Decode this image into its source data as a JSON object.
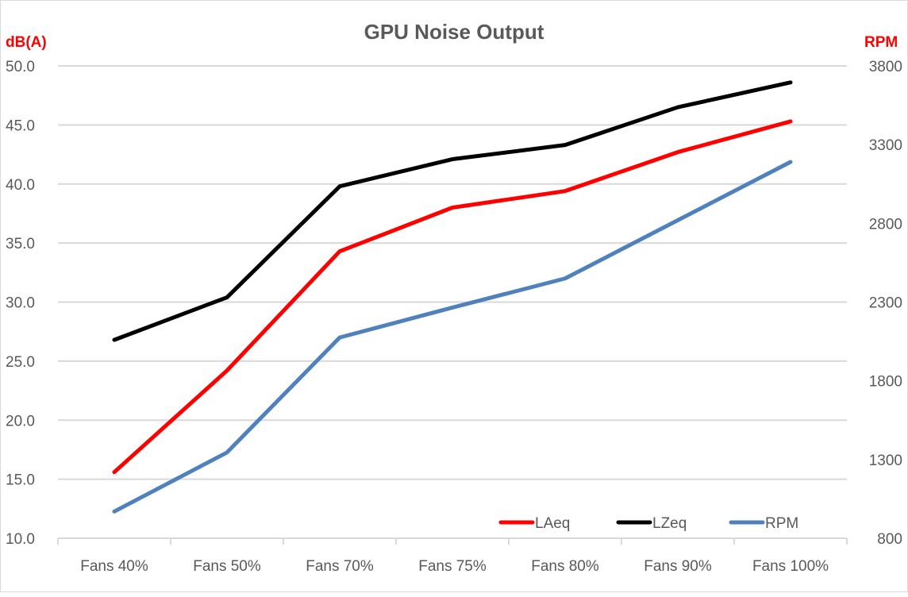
{
  "chart_data": {
    "type": "line",
    "title": "GPU Noise Output",
    "ylabel": "dB(A)",
    "y2label": "RPM",
    "categories": [
      "Fans 40%",
      "Fans 50%",
      "Fans 70%",
      "Fans 75%",
      "Fans 80%",
      "Fans 90%",
      "Fans 100%"
    ],
    "ylim": [
      10,
      50
    ],
    "y_ticks": [
      "10.0",
      "15.0",
      "20.0",
      "25.0",
      "30.0",
      "35.0",
      "40.0",
      "45.0",
      "50.0"
    ],
    "y2lim": [
      800,
      3800
    ],
    "y2_ticks": [
      "800",
      "1300",
      "1800",
      "2300",
      "2800",
      "3300",
      "3800"
    ],
    "grid": true,
    "legend_position": "bottom-right inside",
    "axis_label_color": "#ff0000",
    "series": [
      {
        "name": "LAeq",
        "axis": "left",
        "color": "#ff0000",
        "values": [
          15.6,
          24.2,
          34.3,
          38.0,
          39.4,
          42.7,
          45.3
        ]
      },
      {
        "name": "LZeq",
        "axis": "left",
        "color": "#000000",
        "values": [
          26.8,
          30.4,
          39.8,
          42.1,
          43.3,
          46.5,
          48.6
        ]
      },
      {
        "name": "RPM",
        "axis": "right",
        "color": "#4f81bd",
        "values": [
          970,
          1345,
          2075,
          2265,
          2450,
          2820,
          3190
        ]
      }
    ]
  }
}
